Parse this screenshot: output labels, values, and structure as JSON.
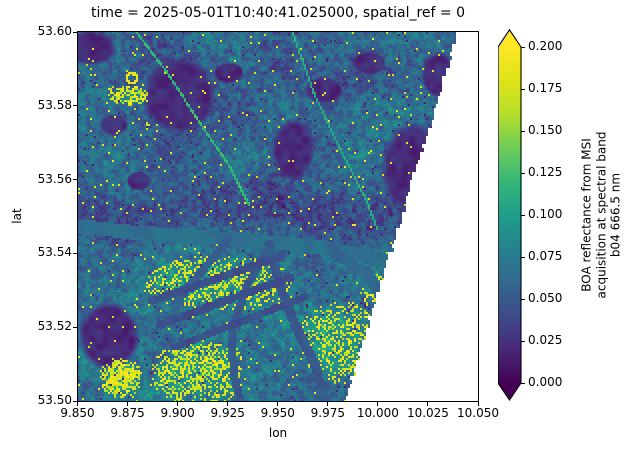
{
  "title": "time = 2025-05-01T10:40:41.025000, spatial_ref = 0",
  "chart_data": {
    "type": "heatmap",
    "title": "time = 2025-05-01T10:40:41.025000, spatial_ref = 0",
    "xlabel": "lon",
    "ylabel": "lat",
    "xlim": [
      9.85,
      10.05
    ],
    "ylim": [
      53.5,
      53.6
    ],
    "x_tick_labels": [
      "9.850",
      "9.875",
      "9.900",
      "9.925",
      "9.950",
      "9.975",
      "10.000",
      "10.025",
      "10.050"
    ],
    "y_tick_labels": [
      "53.60",
      "53.58",
      "53.56",
      "53.54",
      "53.52",
      "53.50"
    ],
    "grid": false,
    "colormap": "viridis",
    "colorbar": {
      "ticks": [
        "0.200",
        "0.175",
        "0.150",
        "0.125",
        "0.100",
        "0.075",
        "0.050",
        "0.025",
        "0.000"
      ],
      "vmin": 0.0,
      "vmax": 0.2,
      "extend": "both",
      "label_lines": [
        "BOA reflectance from MSI",
        "acquisition at spectral band",
        "b04 666.5 nm"
      ]
    },
    "image_description": "Sentinel-2 style BOA reflectance raster (band b04, 666.5 nm) over the Hamburg / Elbe river area; data swath is cut by a diagonal no-data edge on the right side"
  },
  "colors": {
    "viridis_stops": [
      "#440154",
      "#482878",
      "#3e4a89",
      "#31688e",
      "#26828e",
      "#1f9e89",
      "#35b779",
      "#6dcd59",
      "#b5de2b",
      "#dfe318",
      "#fde725"
    ],
    "axes": "#000000",
    "background": "#ffffff"
  }
}
